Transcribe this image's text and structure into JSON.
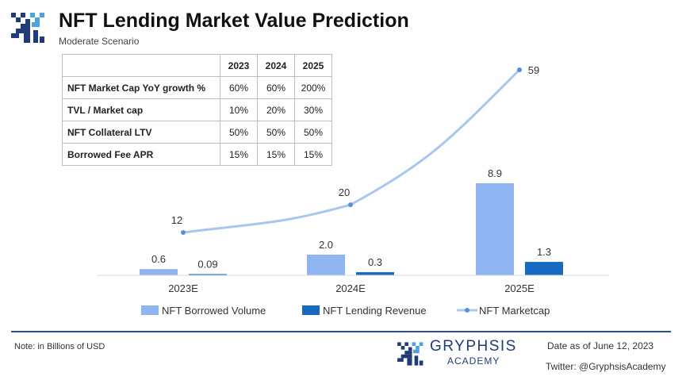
{
  "header": {
    "title": "NFT Lending Market Value Prediction",
    "subtitle": "Moderate Scenario"
  },
  "assumptions": {
    "years": [
      "2023",
      "2024",
      "2025"
    ],
    "rows": [
      {
        "label": "NFT Market Cap YoY growth %",
        "values": [
          "60%",
          "60%",
          "200%"
        ]
      },
      {
        "label": "TVL / Market cap",
        "values": [
          "10%",
          "20%",
          "30%"
        ]
      },
      {
        "label": "NFT Collateral LTV",
        "values": [
          "50%",
          "50%",
          "50%"
        ]
      },
      {
        "label": "Borrowed Fee APR",
        "values": [
          "15%",
          "15%",
          "15%"
        ]
      }
    ]
  },
  "chart_data": {
    "type": "bar",
    "categories": [
      "2023E",
      "2024E",
      "2025E"
    ],
    "series": [
      {
        "name": "NFT Borrowed Volume",
        "type": "bar",
        "color": "#8fb4f2",
        "values": [
          0.6,
          2.0,
          8.9
        ],
        "labels": [
          "0.6",
          "2.0",
          "8.9"
        ]
      },
      {
        "name": "NFT Lending Revenue",
        "type": "bar",
        "color": "#1769c2",
        "values": [
          0.09,
          0.3,
          1.3
        ],
        "labels": [
          "0.09",
          "0.3",
          "1.3"
        ]
      },
      {
        "name": "NFT Marketcap",
        "type": "line",
        "color": "#a9c6ee",
        "values": [
          12,
          20,
          59
        ],
        "labels": [
          "12",
          "20",
          "59"
        ]
      }
    ],
    "legend_position": "bottom",
    "grid": false
  },
  "footer": {
    "note": "Note: in Billions of USD",
    "brand_name": "GRYPHSIS",
    "brand_sub": "ACADEMY",
    "date": "Date as of June 12, 2023",
    "twitter": "Twitter: @GryphsisAcademy"
  },
  "colors": {
    "brand": "#1f3c78",
    "divider": "#2c4f8f"
  }
}
